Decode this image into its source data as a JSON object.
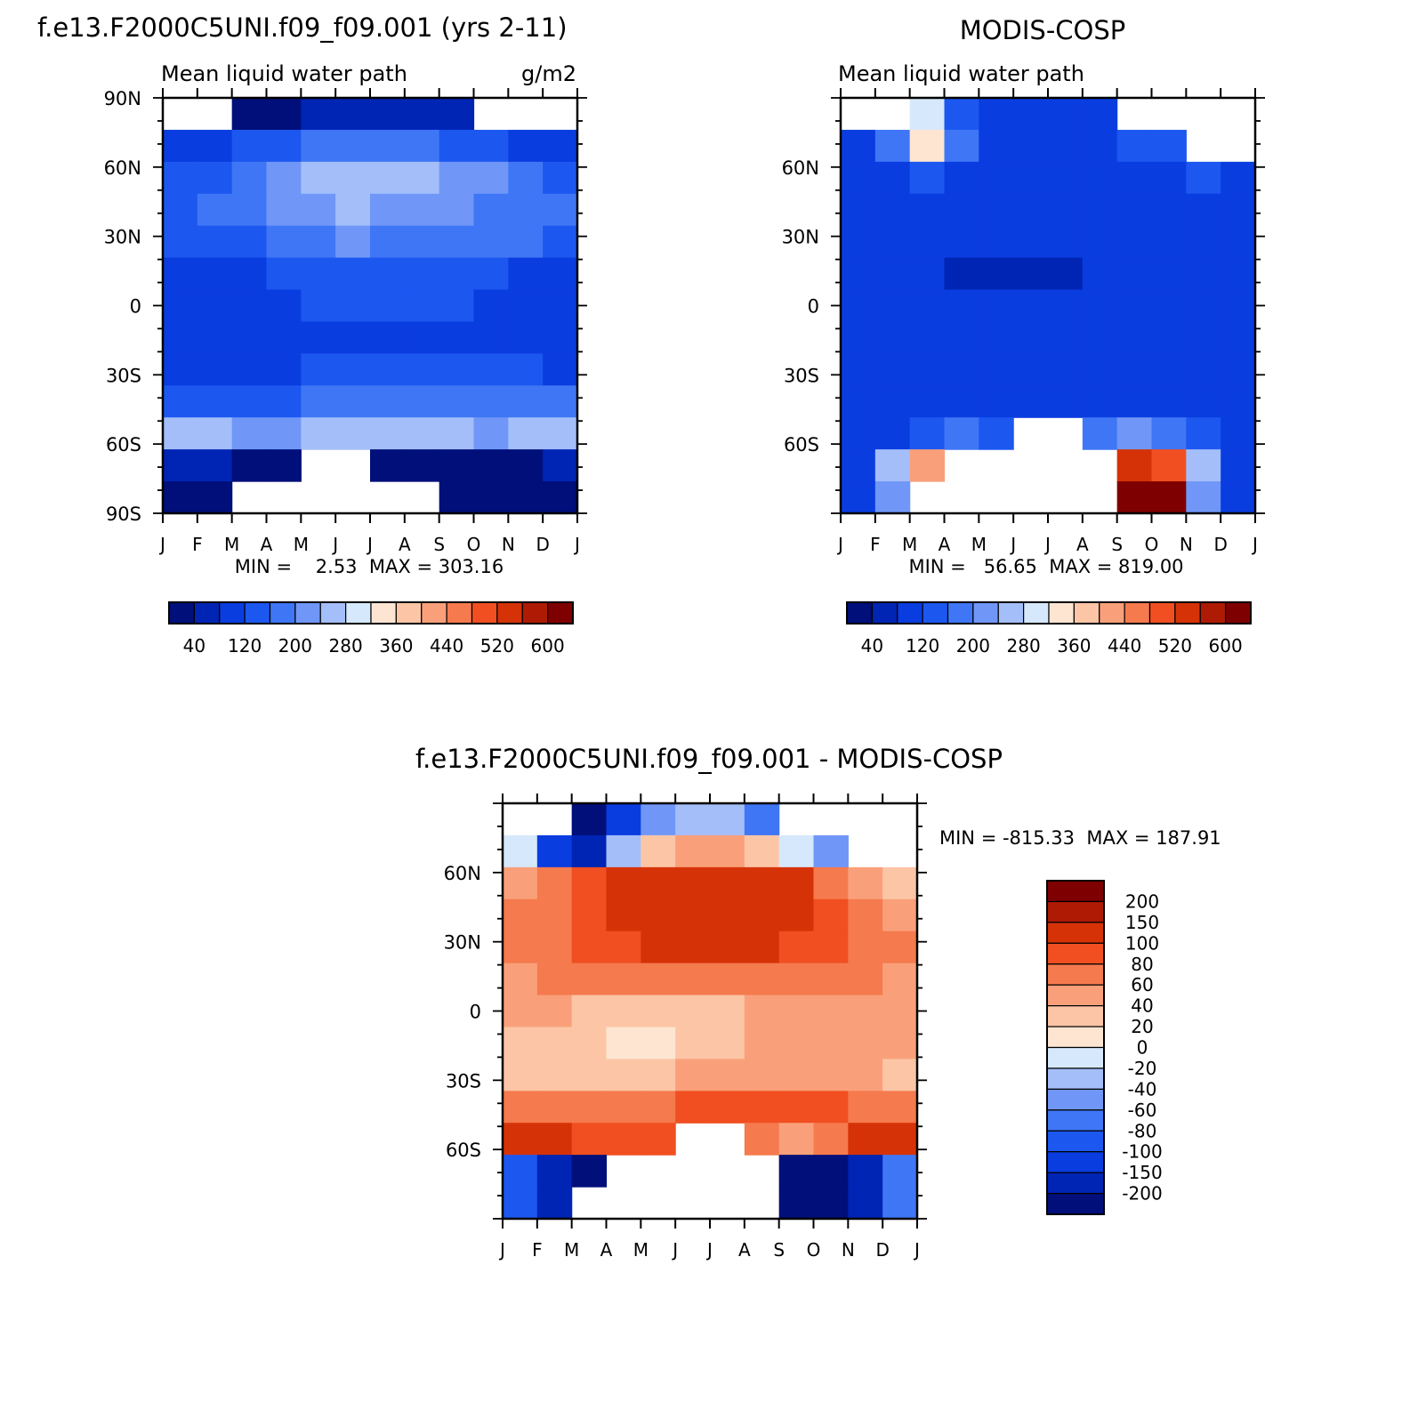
{
  "chart_data": [
    {
      "type": "heatmap",
      "id": "model",
      "title": "f.e13.F2000C5UNI.f09_f09.001 (yrs 2-11)",
      "subtitle_left": "Mean liquid water path",
      "subtitle_right": "g/m2",
      "x_tick_labels": [
        "J",
        "F",
        "M",
        "A",
        "M",
        "J",
        "J",
        "A",
        "S",
        "O",
        "N",
        "D",
        "J"
      ],
      "y_tick_labels": [
        "90N",
        "60N",
        "30N",
        "0",
        "30S",
        "60S",
        "90S"
      ],
      "stats": "MIN =    2.53  MAX = 303.16",
      "colorbar_labels": [
        "40",
        "120",
        "200",
        "280",
        "360",
        "440",
        "520",
        "600"
      ],
      "palette": [
        "#000f79",
        "#0024b4",
        "#0a3de0",
        "#1c57f0",
        "#3f76f5",
        "#7097f7",
        "#a4bef9",
        "#d6e8fb",
        "#fde5d2",
        "#fcc6a6",
        "#f9a07a",
        "#f57a4e",
        "#f14f21",
        "#d63208",
        "#ae1a04",
        "#7f0000"
      ],
      "x": [
        "Jan",
        "Feb",
        "Mar",
        "Apr",
        "May",
        "Jun",
        "Jul",
        "Aug",
        "Sep",
        "Oct",
        "Nov",
        "Dec"
      ],
      "y": [
        "90N",
        "75N",
        "60N",
        "45N",
        "30N",
        "15N",
        "EQ",
        "15S",
        "30S",
        "45S",
        "60S",
        "75S",
        "90S"
      ],
      "z": [
        [
          null,
          null,
          30,
          30,
          60,
          70,
          70,
          70,
          40,
          null,
          null,
          null
        ],
        [
          100,
          90,
          120,
          150,
          170,
          180,
          170,
          160,
          140,
          120,
          100,
          100
        ],
        [
          150,
          150,
          170,
          210,
          250,
          260,
          250,
          240,
          220,
          200,
          170,
          150
        ],
        [
          150,
          160,
          170,
          200,
          230,
          240,
          230,
          220,
          210,
          190,
          170,
          160
        ],
        [
          140,
          150,
          150,
          170,
          190,
          200,
          190,
          190,
          180,
          170,
          160,
          150
        ],
        [
          110,
          110,
          110,
          120,
          130,
          140,
          130,
          130,
          130,
          120,
          110,
          110
        ],
        [
          110,
          110,
          100,
          110,
          120,
          120,
          120,
          120,
          120,
          110,
          110,
          110
        ],
        [
          100,
          100,
          80,
          100,
          100,
          110,
          110,
          110,
          100,
          100,
          100,
          100
        ],
        [
          110,
          110,
          110,
          110,
          120,
          130,
          140,
          140,
          140,
          130,
          120,
          110
        ],
        [
          150,
          150,
          150,
          150,
          160,
          170,
          180,
          180,
          180,
          170,
          160,
          160
        ],
        [
          250,
          250,
          230,
          230,
          240,
          240,
          240,
          240,
          240,
          230,
          240,
          250
        ],
        [
          40,
          40,
          20,
          20,
          null,
          null,
          20,
          30,
          20,
          30,
          30,
          40
        ],
        [
          20,
          20,
          null,
          null,
          null,
          null,
          null,
          null,
          20,
          20,
          20,
          20
        ]
      ]
    },
    {
      "type": "heatmap",
      "id": "obs",
      "title": "MODIS-COSP",
      "subtitle_left": "Mean liquid water path",
      "x_tick_labels": [
        "J",
        "F",
        "M",
        "A",
        "M",
        "J",
        "J",
        "A",
        "S",
        "O",
        "N",
        "D",
        "J"
      ],
      "y_tick_labels": [
        "60N",
        "30N",
        "0",
        "30S",
        "60S"
      ],
      "stats": "MIN =   56.65  MAX = 819.00",
      "colorbar_labels": [
        "40",
        "120",
        "200",
        "280",
        "360",
        "440",
        "520",
        "600"
      ],
      "x": [
        "Jan",
        "Feb",
        "Mar",
        "Apr",
        "May",
        "Jun",
        "Jul",
        "Aug",
        "Sep",
        "Oct",
        "Nov",
        "Dec"
      ],
      "y": [
        "90N",
        "75N",
        "60N",
        "45N",
        "30N",
        "15N",
        "EQ",
        "15S",
        "30S",
        "45S",
        "60S",
        "75S",
        "90S"
      ],
      "z": [
        [
          null,
          null,
          300,
          120,
          100,
          100,
          100,
          110,
          null,
          null,
          null,
          null
        ],
        [
          110,
          180,
          330,
          170,
          110,
          100,
          100,
          110,
          120,
          140,
          null,
          null
        ],
        [
          110,
          110,
          120,
          110,
          100,
          100,
          100,
          100,
          110,
          110,
          120,
          110
        ],
        [
          100,
          100,
          100,
          100,
          100,
          95,
          95,
          95,
          100,
          100,
          100,
          100
        ],
        [
          90,
          90,
          90,
          90,
          90,
          90,
          90,
          90,
          90,
          90,
          90,
          90
        ],
        [
          80,
          80,
          80,
          70,
          60,
          70,
          70,
          80,
          80,
          80,
          80,
          80
        ],
        [
          80,
          80,
          80,
          80,
          80,
          80,
          80,
          80,
          80,
          80,
          80,
          80
        ],
        [
          80,
          80,
          80,
          80,
          80,
          80,
          80,
          80,
          80,
          80,
          80,
          80
        ],
        [
          80,
          80,
          80,
          80,
          80,
          80,
          80,
          80,
          80,
          80,
          80,
          80
        ],
        [
          100,
          100,
          100,
          100,
          95,
          95,
          95,
          95,
          100,
          100,
          100,
          100
        ],
        [
          110,
          110,
          150,
          160,
          140,
          null,
          null,
          170,
          200,
          180,
          130,
          110
        ],
        [
          100,
          250,
          420,
          null,
          null,
          null,
          null,
          null,
          550,
          500,
          250,
          110
        ],
        [
          100,
          220,
          null,
          null,
          null,
          null,
          null,
          null,
          600,
          700,
          200,
          100
        ]
      ]
    },
    {
      "type": "heatmap",
      "id": "diff",
      "title": "f.e13.F2000C5UNI.f09_f09.001 - MODIS-COSP",
      "x_tick_labels": [
        "J",
        "F",
        "M",
        "A",
        "M",
        "J",
        "J",
        "A",
        "S",
        "O",
        "N",
        "D",
        "J"
      ],
      "y_tick_labels": [
        "60N",
        "30N",
        "0",
        "30S",
        "60S"
      ],
      "stats": "MIN = -815.33  MAX = 187.91",
      "colorbar_labels": [
        "200",
        "150",
        "100",
        "80",
        "60",
        "40",
        "20",
        "0",
        "-20",
        "-40",
        "-60",
        "-80",
        "-100",
        "-150",
        "-200"
      ],
      "palette_top_to_bottom": [
        "#7f0000",
        "#ae1a04",
        "#d63208",
        "#f14f21",
        "#f57a4e",
        "#f9a07a",
        "#fcc6a6",
        "#fde5d2",
        "#d6e8fb",
        "#a4bef9",
        "#7097f7",
        "#3f76f5",
        "#1c57f0",
        "#0a3de0",
        "#0024b4",
        "#000f79"
      ],
      "x": [
        "Jan",
        "Feb",
        "Mar",
        "Apr",
        "May",
        "Jun",
        "Jul",
        "Aug",
        "Sep",
        "Oct",
        "Nov",
        "Dec"
      ],
      "y": [
        "90N",
        "75N",
        "60N",
        "45N",
        "30N",
        "15N",
        "EQ",
        "15S",
        "30S",
        "45S",
        "60S",
        "75S",
        "90S"
      ],
      "z": [
        [
          null,
          null,
          -300,
          -120,
          -50,
          -30,
          -30,
          -80,
          null,
          null,
          null,
          null
        ],
        [
          -10,
          -150,
          -200,
          -40,
          20,
          40,
          40,
          20,
          -20,
          -60,
          null,
          null
        ],
        [
          50,
          60,
          80,
          110,
          130,
          140,
          140,
          130,
          100,
          70,
          40,
          30
        ],
        [
          60,
          70,
          90,
          110,
          120,
          130,
          130,
          120,
          100,
          80,
          60,
          55
        ],
        [
          60,
          70,
          80,
          90,
          100,
          110,
          110,
          100,
          90,
          80,
          70,
          60
        ],
        [
          50,
          60,
          60,
          60,
          60,
          70,
          70,
          60,
          60,
          60,
          60,
          50
        ],
        [
          40,
          40,
          30,
          20,
          20,
          20,
          30,
          40,
          40,
          40,
          40,
          40
        ],
        [
          30,
          30,
          20,
          10,
          10,
          20,
          30,
          40,
          40,
          40,
          40,
          40
        ],
        [
          30,
          30,
          30,
          30,
          30,
          40,
          50,
          50,
          50,
          40,
          40,
          30
        ],
        [
          60,
          60,
          60,
          60,
          70,
          80,
          90,
          90,
          90,
          80,
          70,
          60
        ],
        [
          130,
          120,
          90,
          80,
          90,
          null,
          null,
          70,
          50,
          60,
          110,
          140
        ],
        [
          -100,
          -200,
          -300,
          null,
          null,
          null,
          null,
          null,
          -500,
          -400,
          -200,
          -80
        ],
        [
          -100,
          -200,
          null,
          null,
          null,
          null,
          null,
          null,
          -500,
          -600,
          -180,
          -80
        ]
      ]
    }
  ]
}
